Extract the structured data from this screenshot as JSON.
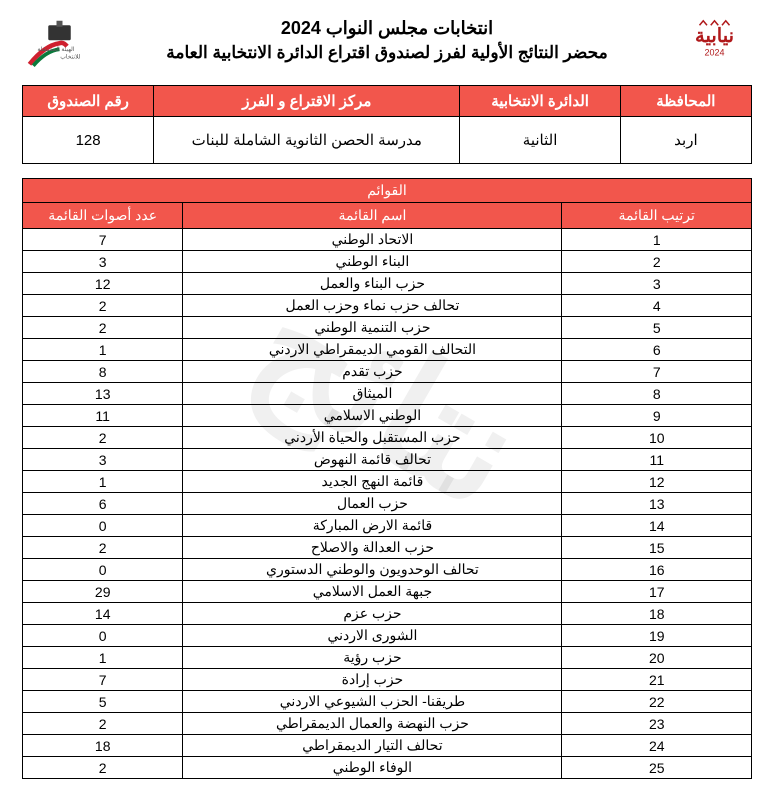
{
  "header": {
    "title1": "انتخابات مجلس النواب 2024",
    "title2": "محضر النتائج الأولية لفرز لصندوق اقتراع الدائرة الانتخابية العامة"
  },
  "info": {
    "headers": {
      "governorate": "المحافظة",
      "district": "الدائرة الانتخابية",
      "center": "مركز الاقتراع و الفرز",
      "box": "رقم الصندوق"
    },
    "values": {
      "governorate": "اربد",
      "district": "الثانية",
      "center": "مدرسة الحصن الثانوية الشاملة للبنات",
      "box": "128"
    }
  },
  "lists": {
    "section_title": "القوائم",
    "headers": {
      "rank": "ترتيب القائمة",
      "name": "اسم القائمة",
      "votes": "عدد أصوات القائمة"
    },
    "rows": [
      {
        "rank": "1",
        "name": "الاتحاد الوطني",
        "votes": "7"
      },
      {
        "rank": "2",
        "name": "البناء الوطني",
        "votes": "3"
      },
      {
        "rank": "3",
        "name": "حزب البناء والعمل",
        "votes": "12"
      },
      {
        "rank": "4",
        "name": "تحالف حزب نماء وحزب العمل",
        "votes": "2"
      },
      {
        "rank": "5",
        "name": "حزب التنمية الوطني",
        "votes": "2"
      },
      {
        "rank": "6",
        "name": "التحالف القومي الديمقراطي الاردني",
        "votes": "1"
      },
      {
        "rank": "7",
        "name": "حزب تقدم",
        "votes": "8"
      },
      {
        "rank": "8",
        "name": "الميثاق",
        "votes": "13"
      },
      {
        "rank": "9",
        "name": "الوطني الاسلامي",
        "votes": "11"
      },
      {
        "rank": "10",
        "name": "حزب المستقبل والحياة الأردني",
        "votes": "2"
      },
      {
        "rank": "11",
        "name": "تحالف قائمة النهوض",
        "votes": "3"
      },
      {
        "rank": "12",
        "name": "قائمة النهج الجديد",
        "votes": "1"
      },
      {
        "rank": "13",
        "name": "حزب العمال",
        "votes": "6"
      },
      {
        "rank": "14",
        "name": "قائمة الارض المباركة",
        "votes": "0"
      },
      {
        "rank": "15",
        "name": "حزب العدالة والاصلاح",
        "votes": "2"
      },
      {
        "rank": "16",
        "name": "تحالف الوحدويون والوطني الدستوري",
        "votes": "0"
      },
      {
        "rank": "17",
        "name": "جبهة العمل الاسلامي",
        "votes": "29"
      },
      {
        "rank": "18",
        "name": "حزب عزم",
        "votes": "14"
      },
      {
        "rank": "19",
        "name": "الشورى الاردني",
        "votes": "0"
      },
      {
        "rank": "20",
        "name": "حزب رؤية",
        "votes": "1"
      },
      {
        "rank": "21",
        "name": "حزب إرادة",
        "votes": "7"
      },
      {
        "rank": "22",
        "name": "طريقنا- الحزب الشيوعي الاردني",
        "votes": "5"
      },
      {
        "rank": "23",
        "name": "حزب النهضة والعمال الديمقراطي",
        "votes": "2"
      },
      {
        "rank": "24",
        "name": "تحالف التيار الديمقراطي",
        "votes": "18"
      },
      {
        "rank": "25",
        "name": "الوفاء الوطني",
        "votes": "2"
      }
    ]
  },
  "watermark": "نتائج",
  "colors": {
    "header_bg": "#f2564c",
    "header_fg": "#ffffff",
    "border": "#000000"
  }
}
